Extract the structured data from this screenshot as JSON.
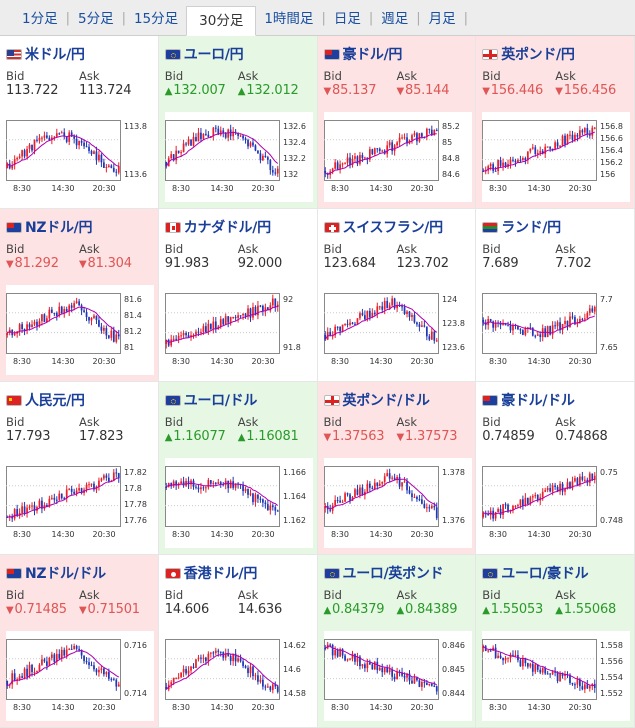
{
  "tabs": [
    {
      "label": "1分足",
      "active": false
    },
    {
      "label": "5分足",
      "active": false
    },
    {
      "label": "15分足",
      "active": false
    },
    {
      "label": "30分足",
      "active": true
    },
    {
      "label": "1時間足",
      "active": false
    },
    {
      "label": "日足",
      "active": false
    },
    {
      "label": "週足",
      "active": false
    },
    {
      "label": "月足",
      "active": false
    }
  ],
  "labels": {
    "bid": "Bid",
    "ask": "Ask"
  },
  "colors": {
    "candle_up": "#e8202a",
    "candle_down": "#1f36b5",
    "ma": "#b000b0",
    "ma2": "#00a8c0",
    "up_text": "#2a9a2a",
    "down_text": "#e05555"
  },
  "x_ticks": [
    "8:30",
    "14:30",
    "20:30"
  ],
  "cells": [
    {
      "pair": "米ドル/円",
      "flag": "us",
      "dir": "flat",
      "bid": "113.722",
      "ask": "113.724",
      "y_ticks": [
        "113.8",
        "113.6"
      ],
      "seed": 11,
      "trend": "up_down"
    },
    {
      "pair": "ユーロ/円",
      "flag": "eu",
      "dir": "up",
      "bid": "132.007",
      "ask": "132.012",
      "y_ticks": [
        "132.6",
        "132.4",
        "132.2",
        "132"
      ],
      "seed": 22,
      "trend": "hump"
    },
    {
      "pair": "豪ドル/円",
      "flag": "au",
      "dir": "down",
      "bid": "85.137",
      "ask": "85.144",
      "y_ticks": [
        "85.2",
        "85",
        "84.8",
        "84.6"
      ],
      "seed": 33,
      "trend": "rise"
    },
    {
      "pair": "英ポンド/円",
      "flag": "gb",
      "dir": "down",
      "bid": "156.446",
      "ask": "156.456",
      "y_ticks": [
        "156.8",
        "156.6",
        "156.4",
        "156.2",
        "156"
      ],
      "seed": 44,
      "trend": "rise"
    },
    {
      "pair": "NZドル/円",
      "flag": "nz",
      "dir": "down",
      "bid": "81.292",
      "ask": "81.304",
      "y_ticks": [
        "81.6",
        "81.4",
        "81.2",
        "81"
      ],
      "seed": 55,
      "trend": "hump_drop"
    },
    {
      "pair": "カナダドル/円",
      "flag": "ca",
      "dir": "flat",
      "bid": "91.983",
      "ask": "92.000",
      "y_ticks": [
        "92",
        "91.8"
      ],
      "seed": 66,
      "trend": "rise"
    },
    {
      "pair": "スイスフラン/円",
      "flag": "ch",
      "dir": "flat",
      "bid": "123.684",
      "ask": "123.702",
      "y_ticks": [
        "124",
        "123.8",
        "123.6"
      ],
      "seed": 77,
      "trend": "hump_drop"
    },
    {
      "pair": "ランド/円",
      "flag": "za",
      "dir": "flat",
      "bid": "7.689",
      "ask": "7.702",
      "y_ticks": [
        "7.7",
        "7.65"
      ],
      "seed": 88,
      "trend": "flat_rise"
    },
    {
      "pair": "人民元/円",
      "flag": "cn",
      "dir": "flat",
      "bid": "17.793",
      "ask": "17.823",
      "y_ticks": [
        "17.82",
        "17.8",
        "17.78",
        "17.76"
      ],
      "seed": 99,
      "trend": "rise"
    },
    {
      "pair": "ユーロ/ドル",
      "flag": "eu",
      "dir": "up",
      "bid": "1.16077",
      "ask": "1.16081",
      "y_ticks": [
        "1.166",
        "1.164",
        "1.162"
      ],
      "seed": 111,
      "trend": "flat_drop"
    },
    {
      "pair": "英ポンド/ドル",
      "flag": "gb",
      "dir": "down",
      "bid": "1.37563",
      "ask": "1.37573",
      "y_ticks": [
        "1.378",
        "1.376"
      ],
      "seed": 122,
      "trend": "hump_drop"
    },
    {
      "pair": "豪ドル/ドル",
      "flag": "au",
      "dir": "flat",
      "bid": "0.74859",
      "ask": "0.74868",
      "y_ticks": [
        "0.75",
        "0.748"
      ],
      "seed": 133,
      "trend": "rise"
    },
    {
      "pair": "NZドル/ドル",
      "flag": "nz",
      "dir": "down",
      "bid": "0.71485",
      "ask": "0.71501",
      "y_ticks": [
        "0.716",
        "0.714"
      ],
      "seed": 144,
      "trend": "hump_drop"
    },
    {
      "pair": "香港ドル/円",
      "flag": "hk",
      "dir": "flat",
      "bid": "14.606",
      "ask": "14.636",
      "y_ticks": [
        "14.62",
        "14.6",
        "14.58"
      ],
      "seed": 155,
      "trend": "up_down"
    },
    {
      "pair": "ユーロ/英ポンド",
      "flag": "eu",
      "dir": "up",
      "bid": "0.84379",
      "ask": "0.84389",
      "y_ticks": [
        "0.846",
        "0.845",
        "0.844"
      ],
      "seed": 166,
      "trend": "drop"
    },
    {
      "pair": "ユーロ/豪ドル",
      "flag": "eu",
      "dir": "up",
      "bid": "1.55053",
      "ask": "1.55068",
      "y_ticks": [
        "1.558",
        "1.556",
        "1.554",
        "1.552"
      ],
      "seed": 177,
      "trend": "drop"
    }
  ]
}
